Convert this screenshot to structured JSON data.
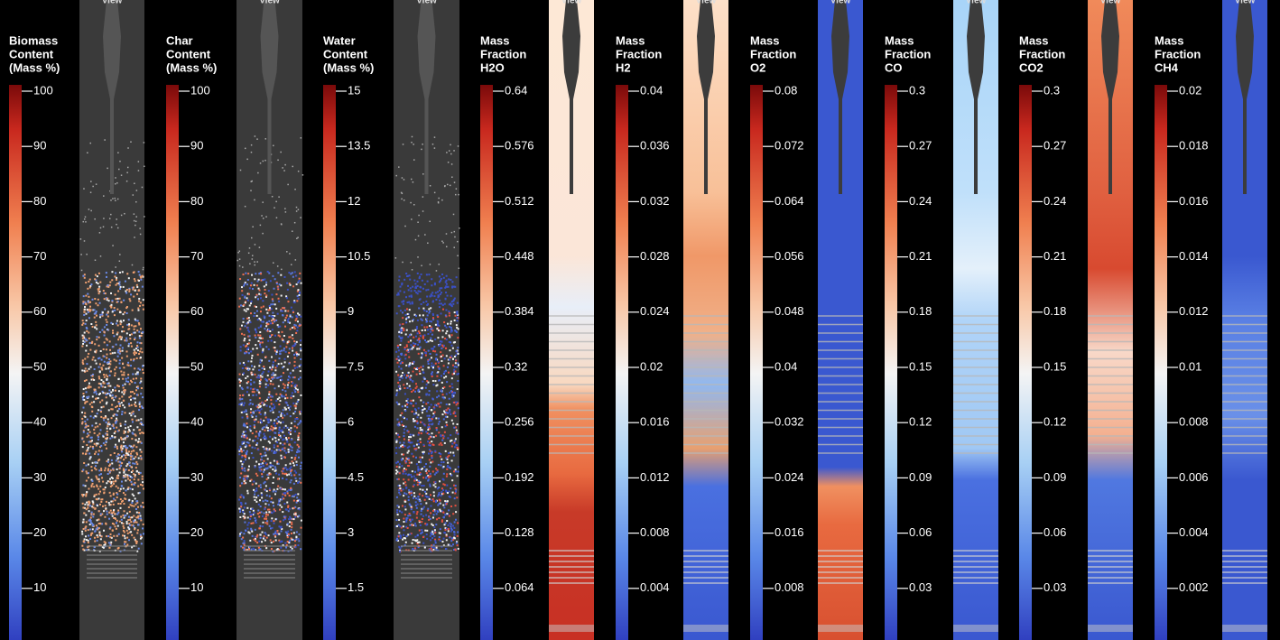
{
  "panels": [
    {
      "view": "View",
      "title": [
        "Biomass",
        "Content",
        "(Mass %)"
      ],
      "ticks": [
        "100",
        "90",
        "80",
        "70",
        "60",
        "50",
        "40",
        "30",
        "20",
        "10"
      ]
    },
    {
      "view": "View",
      "title": [
        "Char",
        "Content",
        "(Mass %)"
      ],
      "ticks": [
        "100",
        "90",
        "80",
        "70",
        "60",
        "50",
        "40",
        "30",
        "20",
        "10"
      ]
    },
    {
      "view": "View",
      "title": [
        "Water",
        "Content",
        "(Mass %)"
      ],
      "ticks": [
        "15",
        "13.5",
        "12",
        "10.5",
        "9",
        "7.5",
        "6",
        "4.5",
        "3",
        "1.5"
      ]
    },
    {
      "view": "View",
      "title": [
        "Mass",
        "Fraction",
        "H2O"
      ],
      "ticks": [
        "0.64",
        "0.576",
        "0.512",
        "0.448",
        "0.384",
        "0.32",
        "0.256",
        "0.192",
        "0.128",
        "0.064"
      ]
    },
    {
      "view": "View",
      "title": [
        "Mass",
        "Fraction",
        "H2"
      ],
      "ticks": [
        "0.04",
        "0.036",
        "0.032",
        "0.028",
        "0.024",
        "0.02",
        "0.016",
        "0.012",
        "0.008",
        "0.004"
      ]
    },
    {
      "view": "View",
      "title": [
        "Mass",
        "Fraction",
        "O2"
      ],
      "ticks": [
        "0.08",
        "0.072",
        "0.064",
        "0.056",
        "0.048",
        "0.04",
        "0.032",
        "0.024",
        "0.016",
        "0.008"
      ]
    },
    {
      "view": "View",
      "title": [
        "Mass",
        "Fraction",
        "CO"
      ],
      "ticks": [
        "0.3",
        "0.27",
        "0.24",
        "0.21",
        "0.18",
        "0.15",
        "0.12",
        "0.09",
        "0.06",
        "0.03"
      ]
    },
    {
      "view": "View",
      "title": [
        "Mass",
        "Fraction",
        "CO2"
      ],
      "ticks": [
        "0.3",
        "0.27",
        "0.24",
        "0.21",
        "0.18",
        "0.15",
        "0.12",
        "0.09",
        "0.06",
        "0.03"
      ]
    },
    {
      "view": "View",
      "title": [
        "Mass",
        "Fraction",
        "CH4"
      ],
      "ticks": [
        "0.02",
        "0.018",
        "0.016",
        "0.014",
        "0.012",
        "0.01",
        "0.008",
        "0.006",
        "0.004",
        "0.002"
      ]
    }
  ]
}
